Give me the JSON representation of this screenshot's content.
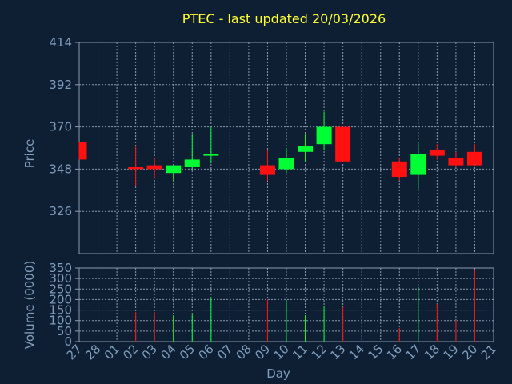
{
  "chart_data": {
    "title": "PTEC - last updated 20/03/2026",
    "colors": {
      "background": "#0f1f33",
      "up": "#00ff33",
      "down": "#ff1111",
      "title": "#ffff33",
      "axis_text": "#7f9fbf",
      "grid": "#8a9bb0"
    },
    "x_ticks": [
      "27",
      "28",
      "01",
      "02",
      "03",
      "04",
      "05",
      "06",
      "07",
      "08",
      "09",
      "10",
      "11",
      "12",
      "13",
      "14",
      "15",
      "16",
      "17",
      "18",
      "19",
      "20",
      "21"
    ],
    "xlabel": "Day",
    "price": {
      "type": "candlestick",
      "ylabel": "Price",
      "ylim": [
        304,
        414
      ],
      "y_ticks": [
        326,
        348,
        370,
        392,
        414
      ],
      "candles": [
        {
          "x": "27",
          "open": 362,
          "close": 353,
          "high": 362,
          "low": 353
        },
        {
          "x": "02",
          "open": 349,
          "close": 348,
          "high": 360,
          "low": 339
        },
        {
          "x": "03",
          "open": 350,
          "close": 348,
          "high": 354,
          "low": 343
        },
        {
          "x": "04",
          "open": 346,
          "close": 350,
          "high": 350,
          "low": 342
        },
        {
          "x": "05",
          "open": 349,
          "close": 353,
          "high": 366,
          "low": 348
        },
        {
          "x": "06",
          "open": 355,
          "close": 356,
          "high": 370,
          "low": 351
        },
        {
          "x": "09",
          "open": 350,
          "close": 345,
          "high": 358,
          "low": 342
        },
        {
          "x": "10",
          "open": 348,
          "close": 354,
          "high": 359,
          "low": 346
        },
        {
          "x": "11",
          "open": 357,
          "close": 360,
          "high": 366,
          "low": 352
        },
        {
          "x": "12",
          "open": 361,
          "close": 370,
          "high": 378,
          "low": 358
        },
        {
          "x": "13",
          "open": 370,
          "close": 352,
          "high": 370,
          "low": 352
        },
        {
          "x": "16",
          "open": 352,
          "close": 344,
          "high": 354,
          "low": 342
        },
        {
          "x": "17",
          "open": 345,
          "close": 356,
          "high": 362,
          "low": 337
        },
        {
          "x": "18",
          "open": 358,
          "close": 355,
          "high": 361,
          "low": 353
        },
        {
          "x": "19",
          "open": 354,
          "close": 350,
          "high": 357,
          "low": 349
        },
        {
          "x": "20",
          "open": 357,
          "close": 350,
          "high": 361,
          "low": 350
        }
      ]
    },
    "volume": {
      "type": "bar",
      "ylabel": "Volume (0000)",
      "ylim": [
        0,
        350
      ],
      "y_ticks": [
        0,
        50,
        100,
        150,
        200,
        250,
        300,
        350
      ],
      "bars": [
        {
          "x": "02",
          "value": 140,
          "direction": "down"
        },
        {
          "x": "03",
          "value": 140,
          "direction": "down"
        },
        {
          "x": "04",
          "value": 125,
          "direction": "up"
        },
        {
          "x": "05",
          "value": 130,
          "direction": "up"
        },
        {
          "x": "06",
          "value": 210,
          "direction": "up"
        },
        {
          "x": "09",
          "value": 200,
          "direction": "down"
        },
        {
          "x": "10",
          "value": 195,
          "direction": "up"
        },
        {
          "x": "11",
          "value": 125,
          "direction": "up"
        },
        {
          "x": "12",
          "value": 165,
          "direction": "up"
        },
        {
          "x": "13",
          "value": 165,
          "direction": "down"
        },
        {
          "x": "16",
          "value": 65,
          "direction": "down"
        },
        {
          "x": "17",
          "value": 260,
          "direction": "up"
        },
        {
          "x": "18",
          "value": 180,
          "direction": "down"
        },
        {
          "x": "19",
          "value": 100,
          "direction": "down"
        },
        {
          "x": "20",
          "value": 340,
          "direction": "down"
        }
      ]
    }
  }
}
